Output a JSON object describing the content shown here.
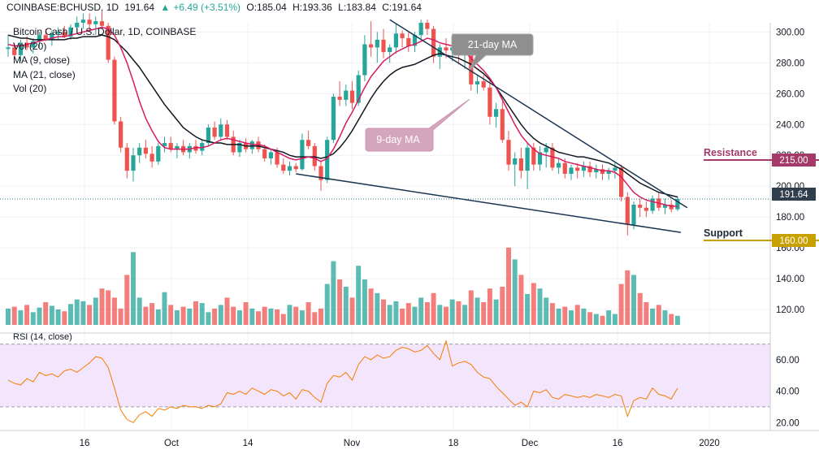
{
  "header": {
    "symbol": "COINBASE:BCHUSD, 1D",
    "last": "191.64",
    "change": "+6.49 (+3.51%)",
    "open": "O:185.04",
    "high": "H:193.36",
    "low": "L:183.84",
    "close": "C:191.64"
  },
  "legend": {
    "title": "Bitcoin Cash / U.S. Dollar, 1D, COINBASE",
    "vol": "Vol (20)",
    "ma9": "MA (9, close)",
    "ma21": "MA (21, close)",
    "vol2": "Vol (20)"
  },
  "annotations": {
    "ma21_callout": "21-day MA",
    "ma9_callout": "9-day MA",
    "resistance": "Resistance",
    "support": "Support"
  },
  "rsi_label": "RSI (14, close)",
  "colors": {
    "up": "#26a69a",
    "down": "#ef5350",
    "ma9": "#d81b60",
    "ma21": "#131722",
    "trend": "#1c3550",
    "rsi": "#f57c00",
    "rsi_band": "#f3e5fb",
    "resistance": "#a33a6a",
    "support": "#c8a000",
    "price_tag": "#3a4a5a"
  },
  "chart_data": {
    "type": "candlestick",
    "title": "Bitcoin Cash / U.S. Dollar, 1D, COINBASE",
    "x_ticks": [
      "16",
      "Oct",
      "14",
      "Nov",
      "18",
      "Dec",
      "16",
      "2020"
    ],
    "price_axis": {
      "ticks": [
        "300.00",
        "280.00",
        "260.00",
        "240.00",
        "220.00",
        "200.00",
        "180.00",
        "160.00",
        "140.00",
        "120.00"
      ],
      "range": [
        110,
        306
      ]
    },
    "rsi_axis": {
      "ticks": [
        "60.00",
        "40.00",
        "20.00"
      ],
      "range": [
        16,
        76
      ],
      "band": [
        30,
        70
      ]
    },
    "price_labels": {
      "last": "191.64",
      "resistance": "215.00",
      "support": "160.00"
    },
    "levels": {
      "resistance": 215.0,
      "support": 160.0,
      "last": 191.64
    },
    "candles": [
      [
        289,
        298,
        284,
        290
      ],
      [
        290,
        293,
        282,
        285
      ],
      [
        285,
        295,
        281,
        293
      ],
      [
        293,
        297,
        288,
        290
      ],
      [
        290,
        296,
        286,
        294
      ],
      [
        294,
        300,
        290,
        298
      ],
      [
        298,
        302,
        294,
        295
      ],
      [
        295,
        301,
        291,
        299
      ],
      [
        299,
        303,
        295,
        300
      ],
      [
        300,
        304,
        296,
        297
      ],
      [
        297,
        305,
        295,
        303
      ],
      [
        303,
        310,
        300,
        306
      ],
      [
        306,
        312,
        302,
        308
      ],
      [
        308,
        312,
        300,
        305
      ],
      [
        305,
        310,
        298,
        307
      ],
      [
        307,
        313,
        302,
        304
      ],
      [
        304,
        306,
        280,
        282
      ],
      [
        282,
        284,
        240,
        242
      ],
      [
        242,
        245,
        222,
        225
      ],
      [
        225,
        228,
        205,
        210
      ],
      [
        210,
        225,
        203,
        220
      ],
      [
        220,
        228,
        215,
        225
      ],
      [
        225,
        230,
        218,
        221
      ],
      [
        221,
        226,
        212,
        216
      ],
      [
        216,
        228,
        214,
        226
      ],
      [
        226,
        232,
        222,
        228
      ],
      [
        228,
        232,
        222,
        224
      ],
      [
        224,
        228,
        218,
        226
      ],
      [
        226,
        230,
        220,
        222
      ],
      [
        222,
        228,
        218,
        226
      ],
      [
        226,
        230,
        221,
        223
      ],
      [
        223,
        230,
        220,
        228
      ],
      [
        228,
        240,
        226,
        238
      ],
      [
        238,
        242,
        230,
        232
      ],
      [
        232,
        244,
        230,
        240
      ],
      [
        240,
        243,
        230,
        232
      ],
      [
        232,
        236,
        220,
        222
      ],
      [
        222,
        230,
        219,
        228
      ],
      [
        228,
        231,
        222,
        224
      ],
      [
        224,
        230,
        221,
        229
      ],
      [
        229,
        232,
        222,
        224
      ],
      [
        224,
        227,
        216,
        218
      ],
      [
        218,
        224,
        214,
        222
      ],
      [
        222,
        225,
        212,
        214
      ],
      [
        214,
        218,
        208,
        210
      ],
      [
        210,
        216,
        207,
        213
      ],
      [
        213,
        215,
        209,
        211
      ],
      [
        211,
        234,
        210,
        230
      ],
      [
        230,
        236,
        224,
        226
      ],
      [
        226,
        228,
        210,
        213
      ],
      [
        213,
        216,
        197,
        204
      ],
      [
        204,
        232,
        202,
        230
      ],
      [
        230,
        260,
        228,
        258
      ],
      [
        258,
        268,
        252,
        256
      ],
      [
        256,
        266,
        252,
        262
      ],
      [
        262,
        268,
        250,
        254
      ],
      [
        254,
        275,
        252,
        272
      ],
      [
        272,
        298,
        268,
        292
      ],
      [
        292,
        307,
        284,
        290
      ],
      [
        290,
        300,
        280,
        295
      ],
      [
        295,
        302,
        283,
        287
      ],
      [
        287,
        292,
        280,
        290
      ],
      [
        290,
        305,
        286,
        299
      ],
      [
        299,
        301,
        290,
        296
      ],
      [
        296,
        300,
        287,
        291
      ],
      [
        291,
        300,
        287,
        298
      ],
      [
        298,
        308,
        295,
        306
      ],
      [
        306,
        308,
        298,
        302
      ],
      [
        302,
        304,
        280,
        284
      ],
      [
        284,
        292,
        276,
        290
      ],
      [
        290,
        296,
        283,
        288
      ],
      [
        288,
        294,
        281,
        290
      ],
      [
        290,
        295,
        279,
        285
      ],
      [
        285,
        291,
        276,
        287
      ],
      [
        287,
        290,
        262,
        266
      ],
      [
        266,
        272,
        260,
        268
      ],
      [
        268,
        272,
        262,
        264
      ],
      [
        264,
        270,
        240,
        245
      ],
      [
        245,
        254,
        238,
        250
      ],
      [
        250,
        255,
        228,
        230
      ],
      [
        230,
        236,
        210,
        214
      ],
      [
        214,
        222,
        200,
        218
      ],
      [
        218,
        225,
        205,
        210
      ],
      [
        210,
        228,
        198,
        225
      ],
      [
        225,
        228,
        210,
        214
      ],
      [
        214,
        226,
        210,
        222
      ],
      [
        222,
        228,
        212,
        225
      ],
      [
        225,
        228,
        210,
        212
      ],
      [
        212,
        218,
        208,
        215
      ],
      [
        215,
        218,
        205,
        208
      ],
      [
        208,
        214,
        204,
        212
      ],
      [
        212,
        215,
        205,
        210
      ],
      [
        210,
        216,
        206,
        213
      ],
      [
        213,
        216,
        206,
        209
      ],
      [
        209,
        214,
        205,
        211
      ],
      [
        211,
        214,
        204,
        208
      ],
      [
        208,
        212,
        204,
        210
      ],
      [
        210,
        215,
        205,
        212
      ],
      [
        212,
        214,
        190,
        193
      ],
      [
        193,
        196,
        168,
        175
      ],
      [
        175,
        190,
        172,
        188
      ],
      [
        188,
        192,
        180,
        186
      ],
      [
        186,
        190,
        180,
        184
      ],
      [
        184,
        194,
        182,
        192
      ],
      [
        192,
        196,
        184,
        186
      ],
      [
        186,
        192,
        182,
        188
      ],
      [
        188,
        191,
        183,
        185
      ],
      [
        185,
        193.36,
        183.84,
        191.64
      ]
    ],
    "ma9": [
      292,
      291,
      291,
      292,
      293,
      294,
      295,
      296,
      297,
      297,
      298,
      299,
      300,
      301,
      302,
      303,
      302,
      298,
      290,
      280,
      268,
      255,
      244,
      236,
      229,
      225,
      224,
      224,
      224,
      224,
      225,
      225,
      226,
      228,
      230,
      231,
      230,
      229,
      228,
      227,
      227,
      226,
      224,
      222,
      220,
      218,
      217,
      218,
      219,
      218,
      216,
      218,
      224,
      232,
      241,
      248,
      256,
      264,
      271,
      276,
      281,
      284,
      287,
      289,
      291,
      292,
      294,
      296,
      295,
      293,
      292,
      291,
      289,
      287,
      283,
      279,
      275,
      270,
      264,
      256,
      248,
      240,
      233,
      228,
      224,
      221,
      220,
      219,
      218,
      216,
      215,
      214,
      213,
      212,
      211,
      210,
      210,
      209,
      206,
      201,
      196,
      193,
      191,
      190,
      189,
      188,
      187,
      187
    ],
    "ma21": [
      298,
      297,
      296,
      296,
      295,
      295,
      295,
      295,
      295,
      295,
      296,
      296,
      297,
      297,
      297,
      298,
      297,
      295,
      291,
      287,
      282,
      277,
      271,
      265,
      259,
      253,
      248,
      243,
      238,
      235,
      232,
      230,
      229,
      228,
      228,
      227,
      227,
      227,
      226,
      226,
      226,
      225,
      224,
      223,
      222,
      220,
      219,
      219,
      219,
      219,
      218,
      219,
      221,
      225,
      230,
      236,
      243,
      250,
      257,
      263,
      268,
      272,
      275,
      277,
      278,
      279,
      281,
      283,
      285,
      286,
      285,
      284,
      283,
      281,
      279,
      276,
      273,
      269,
      264,
      258,
      252,
      246,
      240,
      235,
      231,
      228,
      226,
      224,
      222,
      221,
      220,
      219,
      219,
      218,
      217,
      216,
      215,
      213,
      211,
      208,
      205,
      202,
      200,
      198,
      196,
      195,
      194,
      193
    ],
    "volume": [
      18,
      20,
      16,
      22,
      14,
      19,
      25,
      21,
      17,
      15,
      23,
      28,
      26,
      22,
      30,
      40,
      38,
      30,
      18,
      55,
      80,
      30,
      20,
      24,
      17,
      36,
      22,
      16,
      20,
      18,
      26,
      24,
      14,
      18,
      22,
      30,
      20,
      16,
      25,
      18,
      15,
      20,
      18,
      17,
      12,
      22,
      20,
      16,
      25,
      14,
      18,
      45,
      70,
      50,
      42,
      30,
      65,
      50,
      40,
      35,
      28,
      22,
      26,
      18,
      24,
      20,
      30,
      25,
      35,
      22,
      20,
      28,
      26,
      22,
      38,
      30,
      25,
      40,
      28,
      42,
      85,
      72,
      55,
      34,
      46,
      40,
      30,
      24,
      18,
      20,
      16,
      22,
      18,
      14,
      12,
      10,
      16,
      12,
      45,
      60,
      55,
      35,
      25,
      18,
      22,
      16,
      12,
      10
    ],
    "rsi": [
      47,
      45,
      44,
      48,
      46,
      52,
      50,
      51,
      49,
      53,
      54,
      52,
      55,
      58,
      62,
      61,
      55,
      42,
      28,
      22,
      20,
      25,
      27,
      24,
      29,
      28,
      30,
      29,
      31,
      30,
      30,
      29,
      31,
      30,
      32,
      39,
      38,
      40,
      38,
      42,
      40,
      38,
      41,
      40,
      37,
      39,
      35,
      41,
      40,
      36,
      33,
      45,
      50,
      49,
      52,
      47,
      57,
      62,
      60,
      63,
      61,
      62,
      66,
      68,
      67,
      65,
      66,
      69,
      64,
      60,
      72,
      56,
      58,
      59,
      57,
      52,
      49,
      48,
      43,
      39,
      35,
      31,
      33,
      30,
      40,
      39,
      41,
      36,
      35,
      38,
      37,
      36,
      37,
      36,
      38,
      37,
      36,
      38,
      37,
      24,
      34,
      36,
      35,
      42,
      38,
      37,
      35,
      42
    ]
  }
}
